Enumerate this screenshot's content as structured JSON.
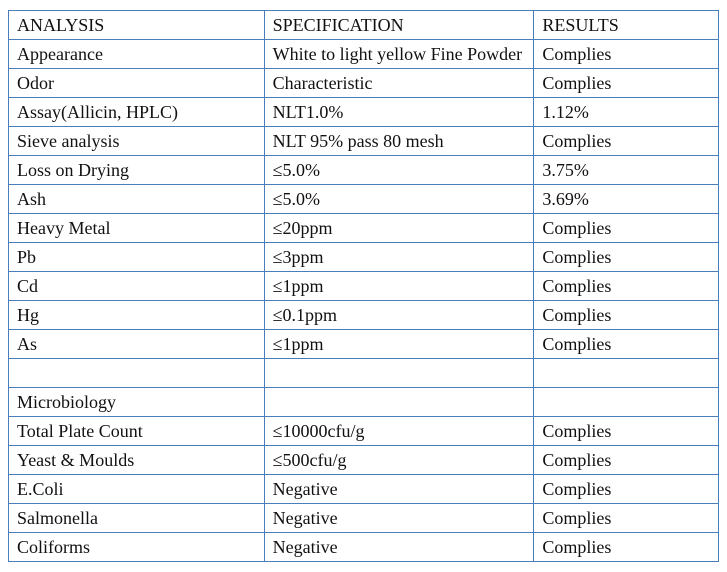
{
  "table": {
    "border_color": "#4a7ebb",
    "background_color": "#ffffff",
    "text_color": "#111111",
    "font_family": "Times New Roman",
    "font_size_pt": 14,
    "columns": [
      {
        "key": "analysis",
        "label": "ANALYSIS",
        "bold": true,
        "width_pct": 36
      },
      {
        "key": "specification",
        "label": "SPECIFICATION",
        "bold": false,
        "width_pct": 38
      },
      {
        "key": "results",
        "label": "RESULTS",
        "bold": true,
        "width_pct": 26
      }
    ],
    "rows": [
      {
        "analysis": "Appearance",
        "specification": "White to light yellow Fine Powder",
        "results": "Complies",
        "spec_justify": true,
        "tall": true
      },
      {
        "analysis": "Odor",
        "specification": "Characteristic",
        "results": "Complies"
      },
      {
        "analysis": "Assay(Allicin, HPLC)",
        "specification": "NLT1.0%",
        "results": "1.12%"
      },
      {
        "analysis": "Sieve analysis",
        "specification": "NLT 95% pass 80 mesh",
        "results": "Complies"
      },
      {
        "analysis": "Loss on Drying",
        "specification": "≤5.0%",
        "results": "3.75%"
      },
      {
        "analysis": "Ash",
        "specification": "≤5.0%",
        "results": "3.69%"
      },
      {
        "analysis": "Heavy Metal",
        "specification": "≤20ppm",
        "results": "Complies"
      },
      {
        "analysis": "Pb",
        "specification": "≤3ppm",
        "results": "Complies"
      },
      {
        "analysis": "Cd",
        "specification": "≤1ppm",
        "results": "Complies"
      },
      {
        "analysis": "Hg",
        "specification": "≤0.1ppm",
        "results": "Complies"
      },
      {
        "analysis": "As",
        "specification": "≤1ppm",
        "results": "Complies"
      },
      {
        "blank": true
      },
      {
        "analysis": "Microbiology",
        "specification": "",
        "results": "",
        "section": true
      },
      {
        "analysis": "Total Plate Count",
        "specification": "≤10000cfu/g",
        "results": "Complies"
      },
      {
        "analysis": "Yeast & Moulds",
        "specification": "≤500cfu/g",
        "results": "Complies"
      },
      {
        "analysis": "E.Coli",
        "specification": "Negative",
        "results": "Complies"
      },
      {
        "analysis": "Salmonella",
        "specification": "Negative",
        "results": "Complies"
      },
      {
        "analysis": "Coliforms",
        "specification": "Negative",
        "results": "Complies"
      }
    ]
  }
}
